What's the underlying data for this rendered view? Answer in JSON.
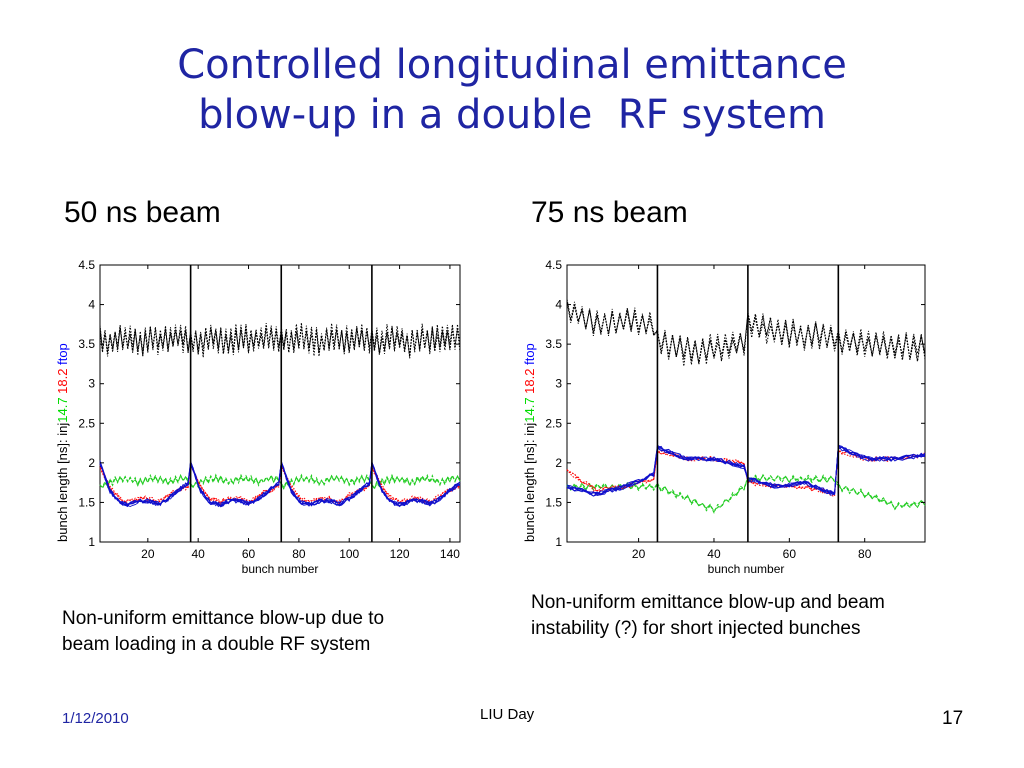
{
  "slide": {
    "title_line1": "Controlled longitudinal emittance",
    "title_line2": "blow-up in a double  RF system",
    "left_heading": "50 ns beam",
    "right_heading": "75 ns beam",
    "left_caption_line1": "Non-uniform emittance blow-up due to",
    "left_caption_line2": "beam loading in a double RF system",
    "right_caption_line1": "Non-uniform emittance blow-up and beam",
    "right_caption_line2": "instability (?)  for short injected bunches",
    "footer_date": "1/12/2010",
    "footer_center": "LIU Day",
    "footer_page": "17"
  },
  "colors": {
    "title": "#1f25a3",
    "footer_date": "#1f25a3",
    "injection": "#00dd00",
    "value_18_2": "#ff0000",
    "flat_top": "#0000ff",
    "trace_black": "#000000",
    "trace_green": "#22cc22",
    "trace_blue": "#1010cc"
  },
  "chart_data": [
    {
      "type": "line",
      "xlabel": "bunch number",
      "ylabel_parts": [
        "bunch length [ns]: inj",
        "14.7",
        "18.2",
        "ftop"
      ],
      "ylim": [
        1,
        4.5
      ],
      "xlim": [
        1,
        144
      ],
      "xticks": [
        20,
        40,
        60,
        80,
        100,
        120,
        140
      ],
      "yticks": [
        1,
        1.5,
        2,
        2.5,
        3,
        3.5,
        4,
        4.5
      ],
      "batch_separators": [
        37,
        73,
        109
      ],
      "batch_size": 36,
      "series": [
        {
          "name": "inj",
          "color": "black",
          "style": "dotted",
          "batch_profile": [
            3.55,
            3.5,
            3.6,
            3.55,
            3.5,
            3.6,
            3.55,
            3.55,
            3.6,
            3.55
          ]
        },
        {
          "name": "14.7",
          "color": "green",
          "style": "dashed",
          "batch_profile": [
            1.7,
            1.75,
            1.8,
            1.8,
            1.75,
            1.8,
            1.8,
            1.75,
            1.8,
            1.8
          ]
        },
        {
          "name": "18.2",
          "color": "red",
          "style": "dotted",
          "batch_profile": [
            1.95,
            1.7,
            1.55,
            1.5,
            1.55,
            1.55,
            1.5,
            1.6,
            1.65,
            1.7
          ]
        },
        {
          "name": "ftop",
          "color": "blue",
          "style": "solid",
          "batch_profile": [
            2.0,
            1.65,
            1.5,
            1.47,
            1.52,
            1.52,
            1.48,
            1.55,
            1.65,
            1.75
          ]
        }
      ]
    },
    {
      "type": "line",
      "xlabel": "bunch number",
      "ylabel_parts": [
        "bunch length [ns]: inj",
        "14.7",
        "18.2",
        "ftop"
      ],
      "ylim": [
        1,
        4.5
      ],
      "xlim": [
        1,
        96
      ],
      "xticks": [
        20,
        40,
        60,
        80
      ],
      "yticks": [
        1,
        1.5,
        2,
        2.5,
        3,
        3.5,
        4,
        4.5
      ],
      "batch_separators": [
        25,
        49,
        73
      ],
      "batch_size": 24,
      "series": [
        {
          "name": "inj",
          "color": "black",
          "style": "dotted",
          "batch_values": [
            [
              3.95,
              3.75,
              3.8,
              3.75
            ],
            [
              3.55,
              3.4,
              3.45,
              3.5
            ],
            [
              3.75,
              3.65,
              3.6,
              3.6
            ],
            [
              3.55,
              3.5,
              3.45,
              3.45
            ]
          ]
        },
        {
          "name": "14.7",
          "color": "green",
          "style": "dashed",
          "batch_values": [
            [
              1.7,
              1.7,
              1.7,
              1.7
            ],
            [
              1.7,
              1.55,
              1.4,
              1.7
            ],
            [
              1.8,
              1.8,
              1.8,
              1.8
            ],
            [
              1.7,
              1.6,
              1.45,
              1.5
            ]
          ]
        },
        {
          "name": "18.2",
          "color": "red",
          "style": "dotted",
          "batch_values": [
            [
              1.9,
              1.65,
              1.7,
              1.8
            ],
            [
              2.15,
              2.05,
              2.05,
              2.0
            ],
            [
              1.75,
              1.7,
              1.7,
              1.6
            ],
            [
              2.15,
              2.05,
              2.05,
              2.1
            ]
          ]
        },
        {
          "name": "ftop",
          "color": "blue",
          "style": "solid",
          "batch_values": [
            [
              1.7,
              1.6,
              1.7,
              1.85
            ],
            [
              2.2,
              2.05,
              2.05,
              1.95
            ],
            [
              1.8,
              1.7,
              1.75,
              1.6
            ],
            [
              2.2,
              2.05,
              2.05,
              2.1
            ]
          ]
        }
      ]
    }
  ]
}
